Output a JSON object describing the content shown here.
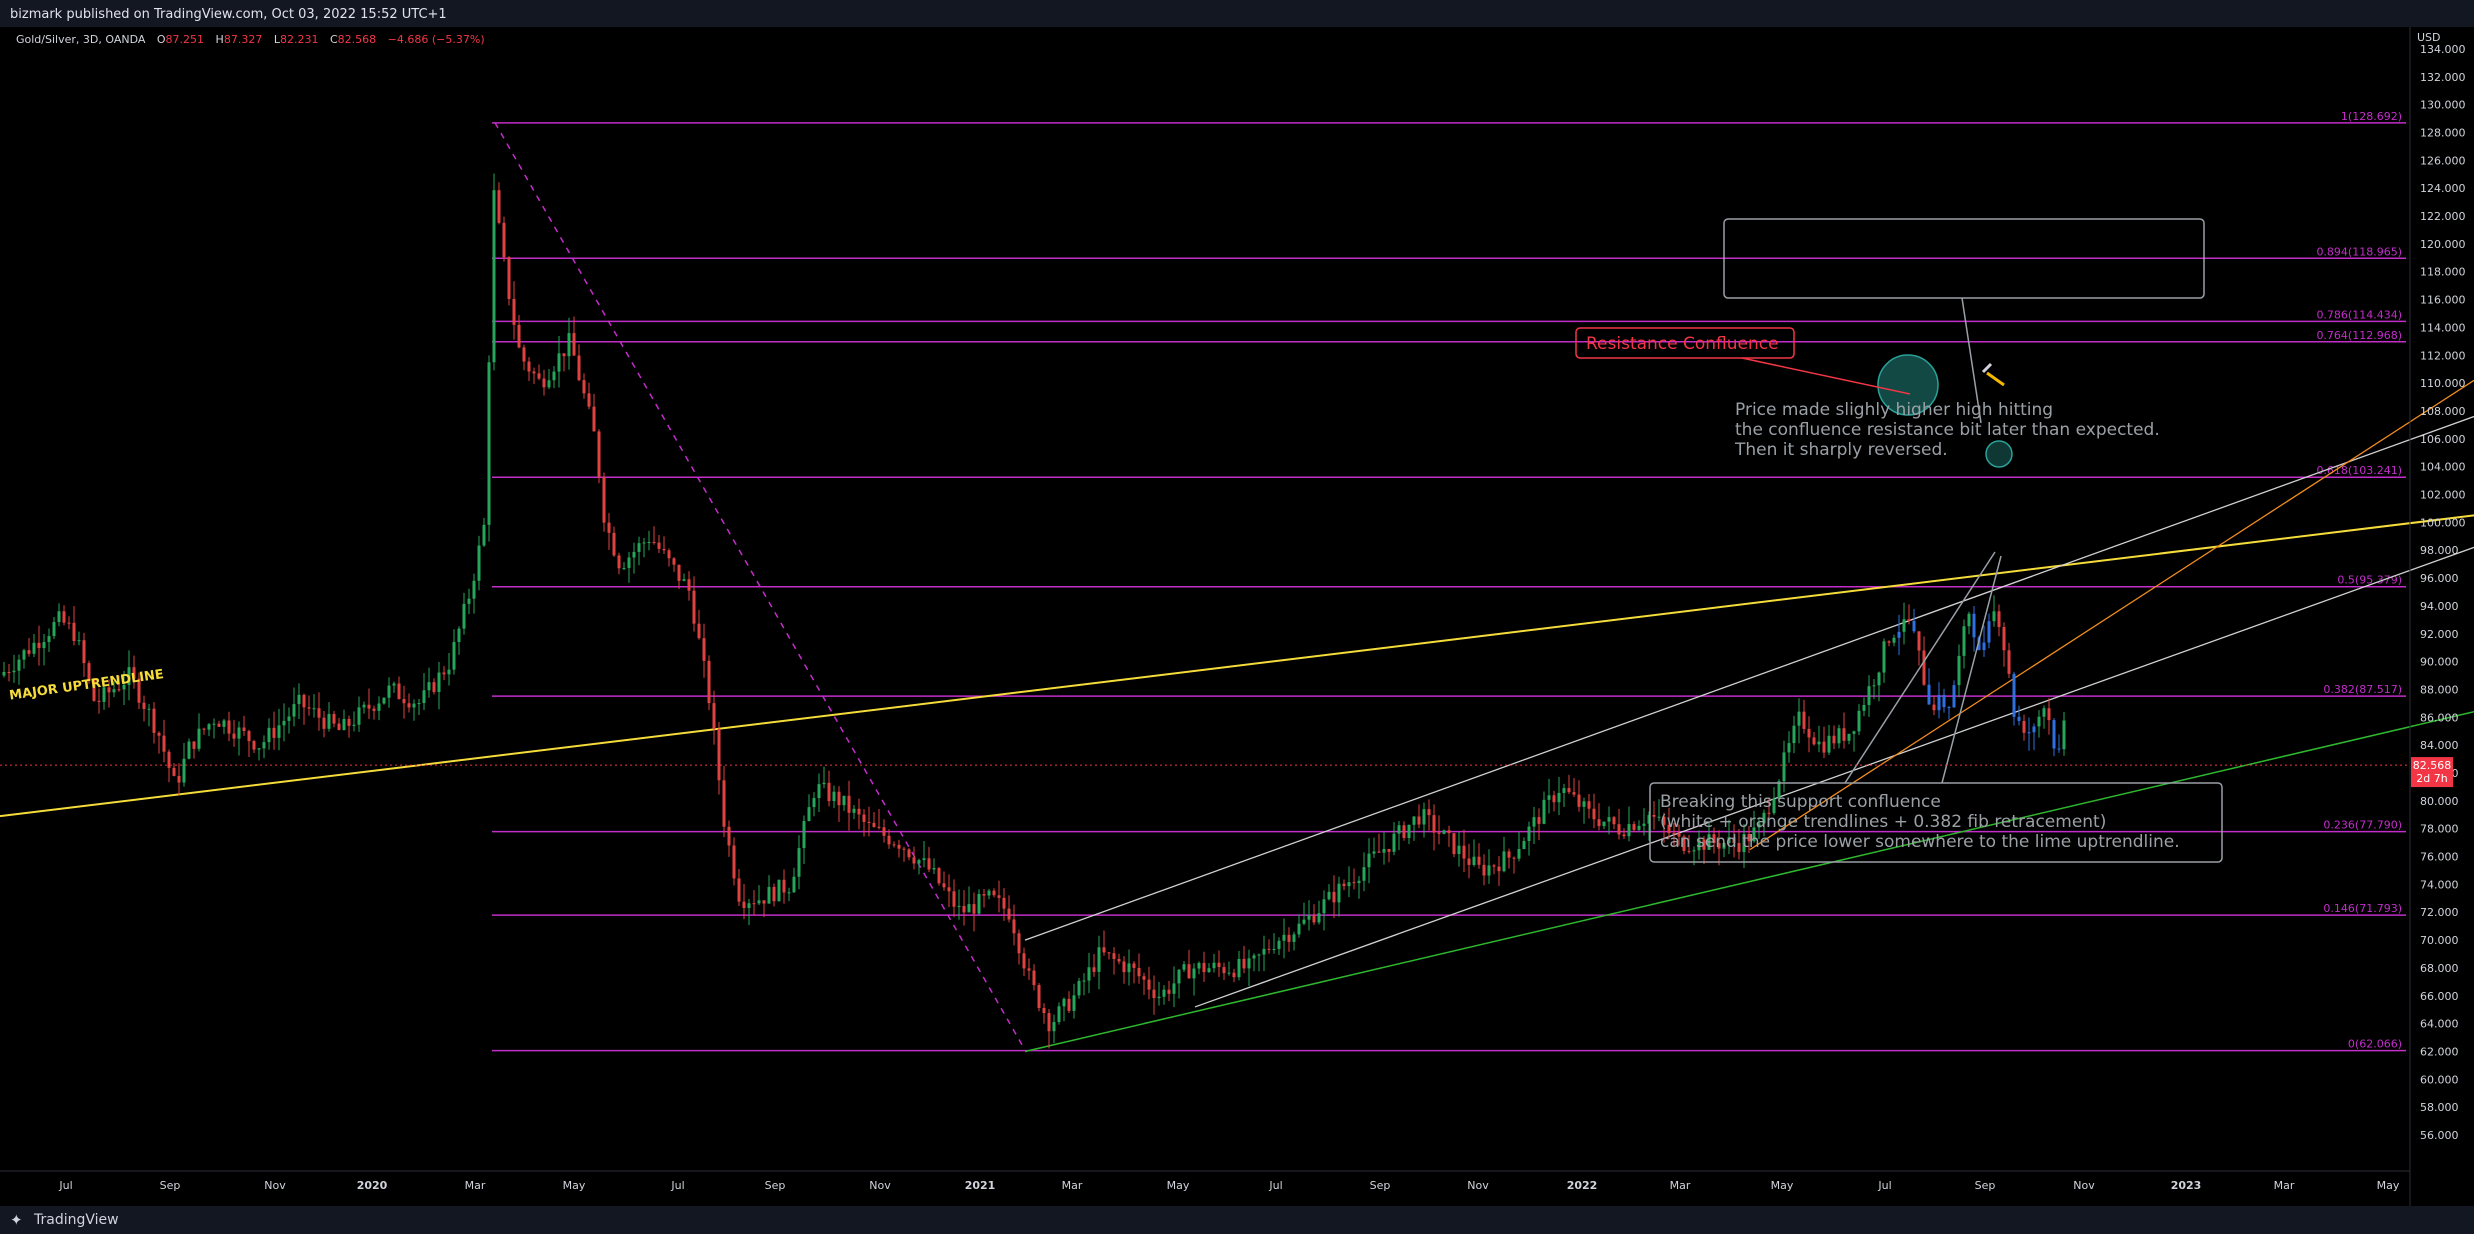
{
  "header": {
    "published": "bizmark published on TradingView.com, Oct 03, 2022 15:52 UTC+1"
  },
  "footer": {
    "brand": "TradingView",
    "logo_icon": "tradingview-logo-icon"
  },
  "colors": {
    "background": "#000000",
    "fib": "#c22ec9",
    "yellow": "#f5dc3a",
    "white_channel": "#d0d0d0",
    "orange": "#f08c1e",
    "green": "#2eb82e",
    "candle_up": "#26a65b",
    "candle_down": "#e0433f",
    "candle_recent": "#2f6fe0",
    "price_tag": "#f23645",
    "annotation_red": "#f23645",
    "annotation_grey": "#9aa0a6"
  },
  "chart_data": {
    "type": "candlestick",
    "symbol_title": "Gold/Silver, 3D, OANDA",
    "ohlc": {
      "o_label": "O",
      "o": "87.251",
      "h_label": "H",
      "h": "87.327",
      "l_label": "L",
      "l": "82.231",
      "c_label": "C",
      "c": "82.568",
      "change": "−4.686 (−5.37%)"
    },
    "currency": "USD",
    "current_price": {
      "value": "82.568",
      "countdown": "2d 7h"
    },
    "y_ticks": [
      "134.000",
      "132.000",
      "130.000",
      "128.000",
      "126.000",
      "124.000",
      "122.000",
      "120.000",
      "118.000",
      "116.000",
      "114.000",
      "112.000",
      "110.000",
      "108.000",
      "106.000",
      "104.000",
      "102.000",
      "100.000",
      "98.000",
      "96.000",
      "94.000",
      "92.000",
      "90.000",
      "88.000",
      "86.000",
      "84.000",
      "82.000",
      "80.000",
      "78.000",
      "76.000",
      "74.000",
      "72.000",
      "70.000",
      "68.000",
      "66.000",
      "64.000",
      "62.000",
      "60.000",
      "58.000",
      "56.000"
    ],
    "x_ticks": [
      "Jul",
      "Sep",
      "Nov",
      "2020",
      "Mar",
      "May",
      "Jul",
      "Sep",
      "Nov",
      "2021",
      "Mar",
      "May",
      "Jul",
      "Sep",
      "Nov",
      "2022",
      "Mar",
      "May",
      "Jul",
      "Sep",
      "Nov",
      "2023",
      "Mar",
      "May"
    ],
    "ylim": [
      55.5,
      135
    ],
    "fib_levels": [
      {
        "label": "1(128.692)",
        "value": 128.692
      },
      {
        "label": "0.894(118.965)",
        "value": 118.965
      },
      {
        "label": "0.786(114.434)",
        "value": 114.434
      },
      {
        "label": "0.764(112.968)",
        "value": 112.968
      },
      {
        "label": "0.618(103.241)",
        "value": 103.241
      },
      {
        "label": "0.5(95.379)",
        "value": 95.379
      },
      {
        "label": "0.382(87.517)",
        "value": 87.517
      },
      {
        "label": "0.236(77.790)",
        "value": 77.79
      },
      {
        "label": "0.146(71.793)",
        "value": 71.793
      },
      {
        "label": "0(62.066)",
        "value": 62.066
      }
    ],
    "series_anchors": [
      {
        "t": 0,
        "p": 89
      },
      {
        "t": 60,
        "p": 93
      },
      {
        "t": 75,
        "p": 92
      },
      {
        "t": 95,
        "p": 87
      },
      {
        "t": 130,
        "p": 89
      },
      {
        "t": 158,
        "p": 85
      },
      {
        "t": 175,
        "p": 81
      },
      {
        "t": 190,
        "p": 84
      },
      {
        "t": 215,
        "p": 86
      },
      {
        "t": 260,
        "p": 84
      },
      {
        "t": 300,
        "p": 87
      },
      {
        "t": 340,
        "p": 85
      },
      {
        "t": 390,
        "p": 88
      },
      {
        "t": 420,
        "p": 87
      },
      {
        "t": 450,
        "p": 90
      },
      {
        "t": 470,
        "p": 95
      },
      {
        "t": 485,
        "p": 100
      },
      {
        "t": 493,
        "p": 124
      },
      {
        "t": 505,
        "p": 118
      },
      {
        "t": 520,
        "p": 112
      },
      {
        "t": 540,
        "p": 110
      },
      {
        "t": 570,
        "p": 113
      },
      {
        "t": 595,
        "p": 106
      },
      {
        "t": 605,
        "p": 100
      },
      {
        "t": 620,
        "p": 97
      },
      {
        "t": 650,
        "p": 99
      },
      {
        "t": 690,
        "p": 95
      },
      {
        "t": 710,
        "p": 87
      },
      {
        "t": 725,
        "p": 78
      },
      {
        "t": 740,
        "p": 73
      },
      {
        "t": 760,
        "p": 73
      },
      {
        "t": 790,
        "p": 74
      },
      {
        "t": 815,
        "p": 81
      },
      {
        "t": 840,
        "p": 80
      },
      {
        "t": 870,
        "p": 78
      },
      {
        "t": 900,
        "p": 77
      },
      {
        "t": 930,
        "p": 75
      },
      {
        "t": 960,
        "p": 72
      },
      {
        "t": 990,
        "p": 73
      },
      {
        "t": 1010,
        "p": 72
      },
      {
        "t": 1030,
        "p": 67
      },
      {
        "t": 1050,
        "p": 64
      },
      {
        "t": 1075,
        "p": 66
      },
      {
        "t": 1100,
        "p": 69
      },
      {
        "t": 1130,
        "p": 68
      },
      {
        "t": 1160,
        "p": 66
      },
      {
        "t": 1190,
        "p": 68
      },
      {
        "t": 1220,
        "p": 68
      },
      {
        "t": 1250,
        "p": 68
      },
      {
        "t": 1275,
        "p": 70
      },
      {
        "t": 1300,
        "p": 71
      },
      {
        "t": 1330,
        "p": 73
      },
      {
        "t": 1360,
        "p": 75
      },
      {
        "t": 1390,
        "p": 77
      },
      {
        "t": 1420,
        "p": 79
      },
      {
        "t": 1450,
        "p": 77
      },
      {
        "t": 1480,
        "p": 75
      },
      {
        "t": 1510,
        "p": 76
      },
      {
        "t": 1540,
        "p": 79
      },
      {
        "t": 1560,
        "p": 81
      },
      {
        "t": 1590,
        "p": 79
      },
      {
        "t": 1620,
        "p": 78
      },
      {
        "t": 1650,
        "p": 79
      },
      {
        "t": 1680,
        "p": 77
      },
      {
        "t": 1710,
        "p": 77
      },
      {
        "t": 1740,
        "p": 77
      },
      {
        "t": 1760,
        "p": 78
      },
      {
        "t": 1780,
        "p": 82
      },
      {
        "t": 1800,
        "p": 86
      },
      {
        "t": 1820,
        "p": 84
      },
      {
        "t": 1850,
        "p": 85
      },
      {
        "t": 1875,
        "p": 89
      },
      {
        "t": 1890,
        "p": 92
      },
      {
        "t": 1910,
        "p": 93
      },
      {
        "t": 1930,
        "p": 87
      },
      {
        "t": 1950,
        "p": 87
      },
      {
        "t": 1970,
        "p": 94
      },
      {
        "t": 1980,
        "p": 90
      },
      {
        "t": 1990,
        "p": 94
      },
      {
        "t": 2000,
        "p": 93
      },
      {
        "t": 2015,
        "p": 86
      },
      {
        "t": 2030,
        "p": 85
      },
      {
        "t": 2045,
        "p": 87
      },
      {
        "t": 2058,
        "p": 83
      },
      {
        "t": 2065,
        "p": 86
      }
    ],
    "trendlines": [
      {
        "name": "yellow-major-uptrendline",
        "p1": {
          "t": 0,
          "p": 78.9
        },
        "p2": {
          "t": 2474,
          "p": 100.5
        }
      },
      {
        "name": "white-channel-upper",
        "p1": {
          "t": 1025,
          "p": 70.0
        },
        "p2": {
          "t": 2474,
          "p": 107.6
        }
      },
      {
        "name": "white-channel-lower",
        "p1": {
          "t": 1195,
          "p": 65.2
        },
        "p2": {
          "t": 2474,
          "p": 98.2
        }
      },
      {
        "name": "orange-trendline",
        "p1": {
          "t": 1750,
          "p": 76.5
        },
        "p2": {
          "t": 2474,
          "p": 110.2
        }
      },
      {
        "name": "green-lime-uptrendline",
        "p1": {
          "t": 1025,
          "p": 62.0
        },
        "p2": {
          "t": 2474,
          "p": 86.4
        }
      },
      {
        "name": "magenta-dashed-fib-line",
        "p1": {
          "t": 495,
          "p": 128.7
        },
        "p2": {
          "t": 1025,
          "p": 62.1
        }
      }
    ],
    "annotations": {
      "major_uptrendline": "MAJOR UPTRENDLINE",
      "resistance_confluence": "Resistance Confluence",
      "price_higher_high": [
        "Price made slighly higher high hitting",
        "the confluence resistance bit later than expected.",
        "Then it sharply reversed."
      ],
      "support_confluence": [
        "Breaking this support confluence",
        "(white + orange trendlines + 0.382 fib retracement)",
        "can send the price lower somewhere to the lime uptrendline."
      ]
    }
  }
}
